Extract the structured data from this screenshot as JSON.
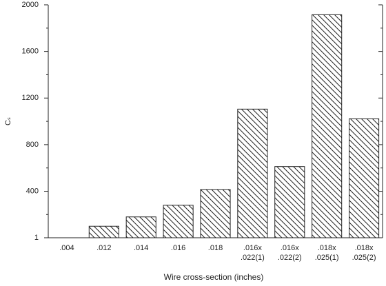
{
  "chart_data": {
    "type": "bar",
    "categories": [
      ".004",
      ".012",
      ".014",
      ".016",
      ".018",
      ".016x\n.022(1)",
      ".016x\n.022(2)",
      ".018x\n.025(1)",
      ".018x\n.025(2)"
    ],
    "values": [
      1,
      100,
      180,
      280,
      415,
      1105,
      612,
      1915,
      1022
    ],
    "color": "#222222",
    "ylim": [
      1,
      2000
    ],
    "yticks": [
      1,
      400,
      800,
      1200,
      1600,
      2000
    ],
    "ylabel": "Cₛ",
    "xlabel": "Wire cross-section (inches)",
    "grid": false
  }
}
